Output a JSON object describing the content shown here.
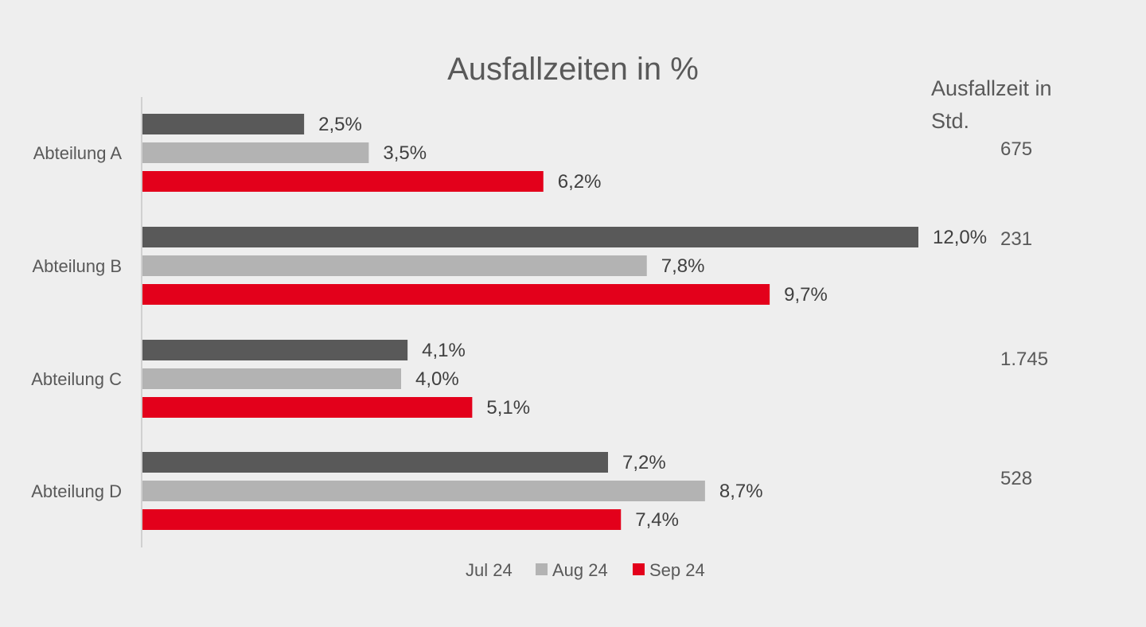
{
  "chart_data": {
    "type": "bar",
    "orientation": "horizontal",
    "title": "Ausfallzeiten in %",
    "xlabel": "",
    "ylabel": "",
    "xlim": [
      0,
      12.8
    ],
    "grid": false,
    "legend_position": "bottom",
    "categories": [
      "Abteilung A",
      "Abteilung B",
      "Abteilung C",
      "Abteilung D"
    ],
    "series": [
      {
        "name": "Jul 24",
        "color": "#595959",
        "values": [
          2.5,
          12.0,
          4.1,
          7.2
        ],
        "labels": [
          "2,5%",
          "12,0%",
          "4,1%",
          "7,2%"
        ]
      },
      {
        "name": "Aug 24",
        "color": "#b3b3b3",
        "values": [
          3.5,
          7.8,
          4.0,
          8.7
        ],
        "labels": [
          "3,5%",
          "7,8%",
          "4,0%",
          "8,7%"
        ]
      },
      {
        "name": "Sep 24",
        "color": "#e3001b",
        "values": [
          6.2,
          9.7,
          5.1,
          7.4
        ],
        "labels": [
          "6,2%",
          "9,7%",
          "5,1%",
          "7,4%"
        ]
      }
    ]
  },
  "side_table": {
    "header_line1": "Ausfallzeit in",
    "header_line2": "Std.",
    "values": [
      "675",
      "231",
      "1.745",
      "528"
    ]
  },
  "colors": {
    "background": "#eeeeee",
    "axis": "#d0d0d0",
    "text": "#595959"
  }
}
